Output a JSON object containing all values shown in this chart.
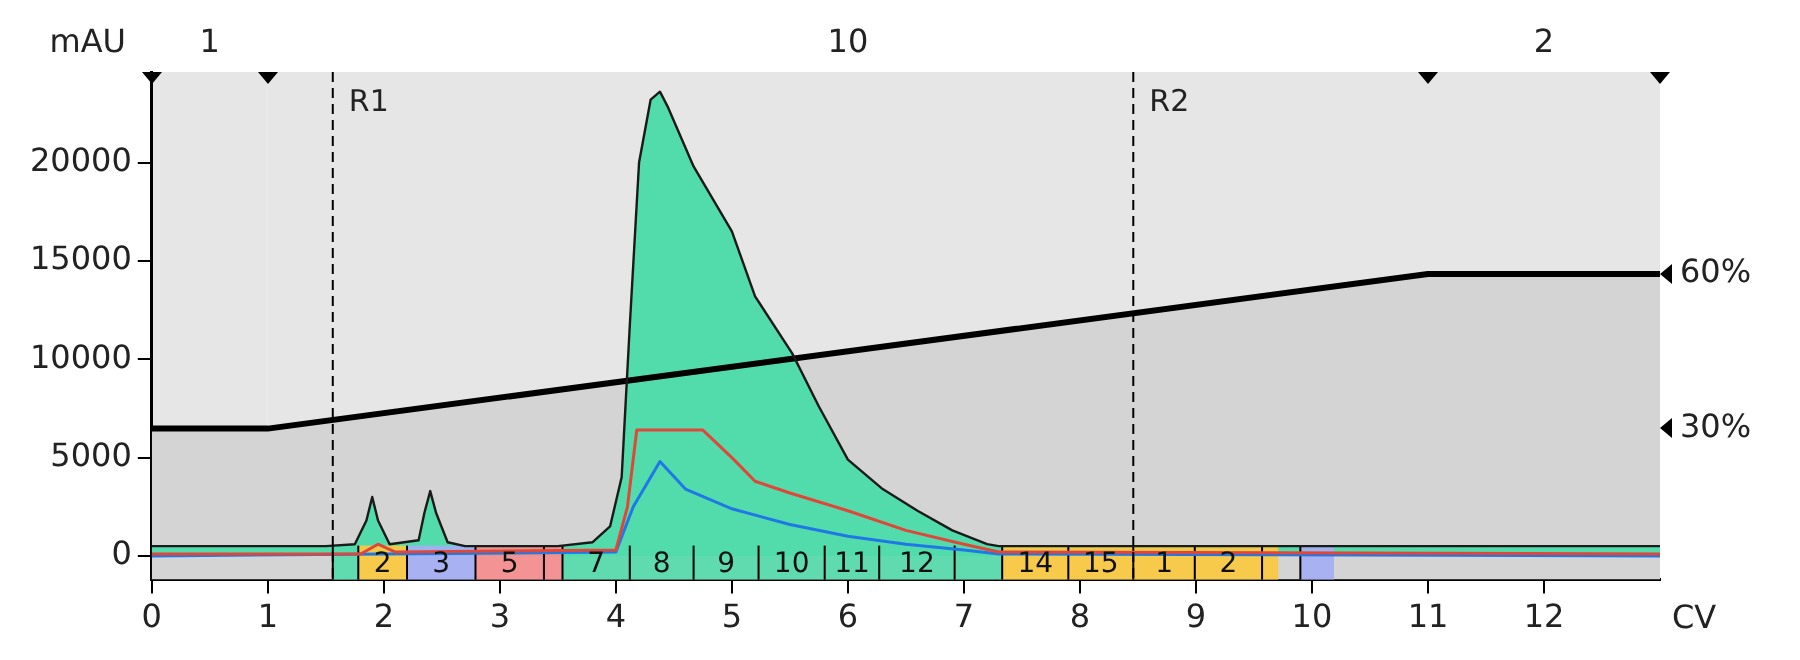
{
  "chart_data": {
    "type": "area",
    "xlabel": "CV",
    "ylabel": "mAU",
    "xlim": [
      0,
      13
    ],
    "xticks": [
      0,
      1,
      2,
      3,
      4,
      5,
      6,
      7,
      8,
      9,
      10,
      11,
      12
    ],
    "ylim": [
      -1200,
      24600
    ],
    "yticks": [
      0,
      5000,
      10000,
      15000,
      20000
    ],
    "y2lim": [
      0.7,
      99.2
    ],
    "y2ticks": [
      {
        "value": 30,
        "label": "30%"
      },
      {
        "value": 60,
        "label": "60%"
      }
    ],
    "grid": false,
    "legend": false,
    "marker": "none",
    "series": [
      {
        "color": "#52dcab",
        "x": [
          0,
          1.5,
          1.75,
          1.85,
          1.9,
          1.95,
          2.05,
          2.3,
          2.35,
          2.4,
          2.45,
          2.55,
          2.7,
          3.5,
          3.8,
          3.95,
          4.05,
          4.12,
          4.2,
          4.3,
          4.38,
          4.45,
          4.67,
          5.0,
          5.2,
          5.52,
          5.75,
          6.0,
          6.3,
          6.6,
          6.9,
          7.2,
          7.3,
          13
        ],
        "values": [
          500,
          500,
          600,
          1800,
          3000,
          1800,
          600,
          800,
          2200,
          3300,
          2200,
          700,
          500,
          500,
          700,
          1500,
          4000,
          11700,
          20000,
          23200,
          23600,
          22800,
          19800,
          16500,
          13200,
          10300,
          7600,
          4900,
          3400,
          2300,
          1300,
          600,
          500,
          500
        ]
      },
      {
        "type": "line",
        "color": "#e0473a",
        "x": [
          0,
          1.8,
          1.95,
          2.1,
          4.0,
          4.1,
          4.18,
          4.75,
          5.0,
          5.2,
          5.5,
          6.0,
          6.5,
          7.0,
          7.3,
          13
        ],
        "values": [
          100,
          100,
          600,
          200,
          300,
          2500,
          6400,
          6400,
          5000,
          3800,
          3200,
          2300,
          1300,
          600,
          200,
          100
        ]
      },
      {
        "type": "line",
        "color": "#1f78e6",
        "x": [
          0,
          4.0,
          4.15,
          4.38,
          4.6,
          5.0,
          5.5,
          6.0,
          6.5,
          7.0,
          7.3,
          13
        ],
        "values": [
          0,
          200,
          2500,
          4800,
          3400,
          2400,
          1600,
          1000,
          600,
          300,
          100,
          0
        ]
      },
      {
        "type": "area",
        "color": "#d4d4d4",
        "axis": "y2",
        "x": [
          0,
          1,
          11,
          13
        ],
        "values": [
          30,
          30,
          60,
          60
        ]
      }
    ],
    "ref_lines": [
      {
        "axis": "x",
        "value": 1.56,
        "label": "R1",
        "line_style": "dashed"
      },
      {
        "axis": "x",
        "value": 8.46,
        "label": "R2",
        "line_style": "dashed"
      }
    ],
    "bands": [
      {
        "axis": "x",
        "from": 0,
        "to": 1,
        "label": "1",
        "color": "#e6e6e6"
      },
      {
        "axis": "x",
        "from": 1,
        "to": 11,
        "label": "10",
        "color": "#e6e6e6"
      },
      {
        "axis": "x",
        "from": 11,
        "to": 13,
        "label": "2",
        "color": "#e6e6e6"
      },
      {
        "axis": "x",
        "from": 1.56,
        "to": 1.78,
        "label": null,
        "color": "#52dcab"
      },
      {
        "axis": "x",
        "from": 1.78,
        "to": 2.2,
        "label": "2",
        "color": "#fcc93d"
      },
      {
        "axis": "x",
        "from": 2.2,
        "to": 2.79,
        "label": "3",
        "color": "#a3aef5"
      },
      {
        "axis": "x",
        "from": 2.79,
        "to": 3.38,
        "label": "5",
        "color": "#f78c8c"
      },
      {
        "axis": "x",
        "from": 3.38,
        "to": 3.54,
        "label": null,
        "color": "#f78c8c"
      },
      {
        "axis": "x",
        "from": 3.54,
        "to": 4.12,
        "label": "7",
        "color": "#52dcab"
      },
      {
        "axis": "x",
        "from": 4.12,
        "to": 4.67,
        "label": "8",
        "color": "#52dcab"
      },
      {
        "axis": "x",
        "from": 4.67,
        "to": 5.23,
        "label": "9",
        "color": "#52dcab"
      },
      {
        "axis": "x",
        "from": 5.23,
        "to": 5.8,
        "label": "10",
        "color": "#52dcab"
      },
      {
        "axis": "x",
        "from": 5.8,
        "to": 6.27,
        "label": "11",
        "color": "#52dcab"
      },
      {
        "axis": "x",
        "from": 6.27,
        "to": 6.92,
        "label": "12",
        "color": "#52dcab"
      },
      {
        "axis": "x",
        "from": 6.92,
        "to": 7.33,
        "label": null,
        "color": "#52dcab"
      },
      {
        "axis": "x",
        "from": 7.33,
        "to": 7.9,
        "label": "14",
        "color": "#fcc93d"
      },
      {
        "axis": "x",
        "from": 7.9,
        "to": 8.46,
        "label": "15",
        "color": "#fcc93d"
      },
      {
        "axis": "x",
        "from": 8.46,
        "to": 8.99,
        "label": "1",
        "color": "#fcc93d"
      },
      {
        "axis": "x",
        "from": 8.99,
        "to": 9.57,
        "label": "2",
        "color": "#fcc93d"
      },
      {
        "axis": "x",
        "from": 9.57,
        "to": 9.71,
        "label": null,
        "color": "#fcc93d"
      },
      {
        "axis": "x",
        "from": 9.9,
        "to": 10.19,
        "label": null,
        "color": "#a3aef5"
      }
    ]
  }
}
